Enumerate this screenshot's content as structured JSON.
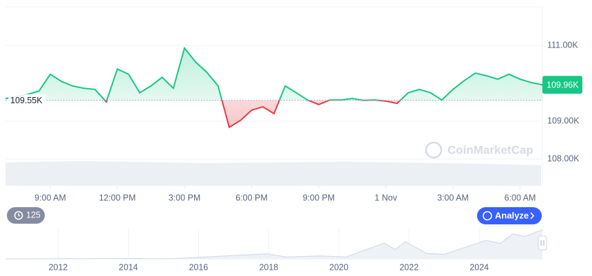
{
  "chart_data": {
    "type": "line",
    "x": [
      7,
      7.5,
      8,
      8.5,
      9,
      9.5,
      10,
      10.5,
      11,
      11.5,
      12,
      12.5,
      13,
      13.5,
      14,
      14.5,
      15,
      15.5,
      16,
      16.5,
      17,
      17.5,
      18,
      18.5,
      19,
      19.5,
      20,
      20.5,
      21,
      21.5,
      22,
      22.5,
      23,
      23.5,
      24,
      24.5,
      25,
      25.5,
      26,
      26.5,
      27,
      27.5,
      28,
      28.5,
      29,
      29.5,
      30,
      30.5,
      31
    ],
    "values": [
      109600,
      109650,
      109710,
      109800,
      110240,
      110050,
      109930,
      109870,
      109840,
      109510,
      110380,
      110240,
      109750,
      109930,
      110160,
      109870,
      110930,
      110560,
      110290,
      109930,
      108840,
      109020,
      109290,
      109380,
      109200,
      109930,
      109750,
      109560,
      109440,
      109560,
      109560,
      109600,
      109550,
      109560,
      109530,
      109470,
      109750,
      109840,
      109750,
      109560,
      109840,
      110070,
      110270,
      110200,
      110110,
      110240,
      110110,
      110020,
      109960
    ],
    "up_color": "#16c784",
    "down_color": "#ea3943",
    "xlim": [
      7,
      31
    ],
    "xticks": [
      {
        "value": 9,
        "label": "9:00 AM"
      },
      {
        "value": 12,
        "label": "12:00 PM"
      },
      {
        "value": 15,
        "label": "3:00 PM"
      },
      {
        "value": 18,
        "label": "6:00 PM"
      },
      {
        "value": 21,
        "label": "9:00 PM"
      },
      {
        "value": 24,
        "label": "1 Nov"
      },
      {
        "value": 27,
        "label": "3:00 AM"
      },
      {
        "value": 30,
        "label": "6:00 AM"
      }
    ],
    "ylim": [
      107910,
      112020
    ],
    "yticks": [
      {
        "value": 111000,
        "label": "111.00K"
      },
      {
        "value": 109000,
        "label": "109.00K"
      },
      {
        "value": 108000,
        "label": "108.00K"
      }
    ],
    "baseline": {
      "value": 109550,
      "label": "109.55K"
    },
    "current": {
      "value": 109960,
      "label": "109.96K"
    },
    "grid": true,
    "watermark": "CoinMarketCap",
    "history_badge": "125",
    "analyze_button": "Analyze",
    "navigator": {
      "x": [
        2010.5,
        2013.9,
        2015.2,
        2017.95,
        2018.5,
        2019.5,
        2020.2,
        2021.3,
        2021.6,
        2021.9,
        2022.5,
        2023.0,
        2024.2,
        2024.6,
        2024.95,
        2025.3,
        2025.8
      ],
      "values": [
        0,
        1000,
        300,
        19000,
        7000,
        11000,
        7000,
        60000,
        35000,
        65000,
        20000,
        17000,
        70000,
        58000,
        95000,
        85000,
        110000
      ],
      "color": "#cfd6e4",
      "xlim": [
        2010.5,
        2025.8
      ],
      "xticks": [
        2012,
        2014,
        2016,
        2018,
        2020,
        2022,
        2024
      ],
      "ylim": [
        0,
        115000
      ]
    }
  }
}
